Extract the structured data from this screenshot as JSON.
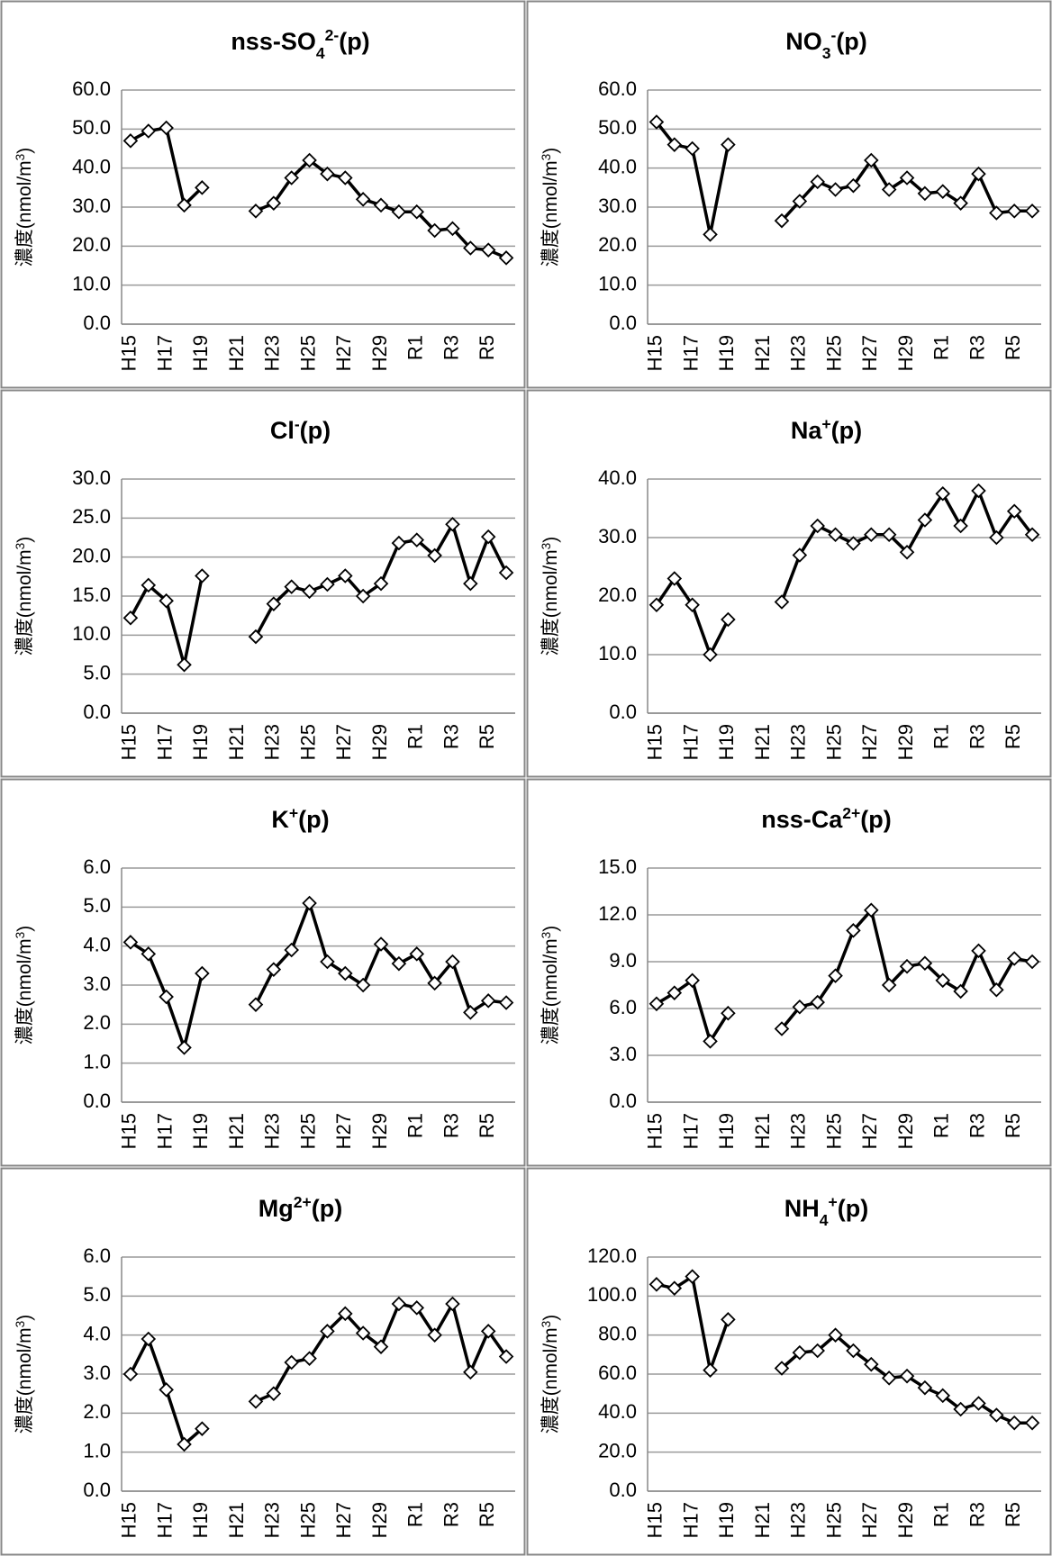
{
  "chart_data": [
    {
      "type": "line",
      "title": [
        {
          "text": "nss-SO"
        },
        {
          "text": "4",
          "shift": "sub"
        },
        {
          "text": "2-",
          "shift": "super"
        },
        {
          "text": "(p)"
        }
      ],
      "ylabel": [
        {
          "text": "濃度(nmol/m"
        },
        {
          "text": "3",
          "shift": "super"
        },
        {
          "text": ")"
        }
      ],
      "categories": [
        "H15",
        null,
        "H17",
        null,
        "H19",
        null,
        "H21",
        null,
        "H23",
        null,
        "H25",
        null,
        "H27",
        null,
        "H29",
        null,
        "R1",
        null,
        "R3",
        null,
        "R5",
        null
      ],
      "values": [
        47,
        49.5,
        50.3,
        30.5,
        35,
        null,
        null,
        29,
        31,
        37.5,
        42,
        38.5,
        37.5,
        32,
        30.5,
        28.8,
        28.8,
        24,
        24.5,
        19.5,
        19,
        17
      ],
      "color": "#000000",
      "marker": "diamond",
      "grid": true,
      "ylim": [
        0,
        60
      ],
      "yticks": [
        {
          "value": 0,
          "label": "0.0"
        },
        {
          "value": 10,
          "label": "10.0"
        },
        {
          "value": 20,
          "label": "20.0"
        },
        {
          "value": 30,
          "label": "30.0"
        },
        {
          "value": 40,
          "label": "40.0"
        },
        {
          "value": 50,
          "label": "50.0"
        },
        {
          "value": 60,
          "label": "60.0"
        }
      ]
    },
    {
      "type": "line",
      "title": [
        {
          "text": "NO"
        },
        {
          "text": "3",
          "shift": "sub"
        },
        {
          "text": "-",
          "shift": "super"
        },
        {
          "text": "(p)"
        }
      ],
      "ylabel": [
        {
          "text": "濃度(nmol/m"
        },
        {
          "text": "3",
          "shift": "super"
        },
        {
          "text": ")"
        }
      ],
      "categories": [
        "H15",
        null,
        "H17",
        null,
        "H19",
        null,
        "H21",
        null,
        "H23",
        null,
        "H25",
        null,
        "H27",
        null,
        "H29",
        null,
        "R1",
        null,
        "R3",
        null,
        "R5",
        null
      ],
      "values": [
        51.8,
        46,
        45,
        23,
        46,
        null,
        null,
        26.5,
        31.5,
        36.5,
        34.5,
        35.5,
        42,
        34.5,
        37.5,
        33.5,
        34,
        31,
        38.5,
        28.5,
        29,
        29
      ],
      "color": "#000000",
      "marker": "diamond",
      "grid": true,
      "ylim": [
        0,
        60
      ],
      "yticks": [
        {
          "value": 0,
          "label": "0.0"
        },
        {
          "value": 10,
          "label": "10.0"
        },
        {
          "value": 20,
          "label": "20.0"
        },
        {
          "value": 30,
          "label": "30.0"
        },
        {
          "value": 40,
          "label": "40.0"
        },
        {
          "value": 50,
          "label": "50.0"
        },
        {
          "value": 60,
          "label": "60.0"
        }
      ]
    },
    {
      "type": "line",
      "title": [
        {
          "text": "Cl"
        },
        {
          "text": "-",
          "shift": "super"
        },
        {
          "text": "(p)"
        }
      ],
      "ylabel": [
        {
          "text": "濃度(nmol/m"
        },
        {
          "text": "3",
          "shift": "super"
        },
        {
          "text": ")"
        }
      ],
      "categories": [
        "H15",
        null,
        "H17",
        null,
        "H19",
        null,
        "H21",
        null,
        "H23",
        null,
        "H25",
        null,
        "H27",
        null,
        "H29",
        null,
        "R1",
        null,
        "R3",
        null,
        "R5",
        null
      ],
      "values": [
        12.2,
        16.4,
        14.4,
        6.2,
        17.6,
        null,
        null,
        9.8,
        14,
        16.2,
        15.6,
        16.5,
        17.6,
        15,
        16.6,
        21.8,
        22.2,
        20.2,
        24.2,
        16.6,
        22.6,
        18
      ],
      "color": "#000000",
      "marker": "diamond",
      "grid": true,
      "ylim": [
        0,
        30
      ],
      "yticks": [
        {
          "value": 0,
          "label": "0.0"
        },
        {
          "value": 5,
          "label": "5.0"
        },
        {
          "value": 10,
          "label": "10.0"
        },
        {
          "value": 15,
          "label": "15.0"
        },
        {
          "value": 20,
          "label": "20.0"
        },
        {
          "value": 25,
          "label": "25.0"
        },
        {
          "value": 30,
          "label": "30.0"
        }
      ]
    },
    {
      "type": "line",
      "title": [
        {
          "text": "Na"
        },
        {
          "text": "+",
          "shift": "super"
        },
        {
          "text": "(p)"
        }
      ],
      "ylabel": [
        {
          "text": "濃度(nmol/m"
        },
        {
          "text": "3",
          "shift": "super"
        },
        {
          "text": ")"
        }
      ],
      "categories": [
        "H15",
        null,
        "H17",
        null,
        "H19",
        null,
        "H21",
        null,
        "H23",
        null,
        "H25",
        null,
        "H27",
        null,
        "H29",
        null,
        "R1",
        null,
        "R3",
        null,
        "R5",
        null
      ],
      "values": [
        18.5,
        23,
        18.5,
        10,
        16,
        null,
        null,
        19,
        27,
        32,
        30.5,
        29,
        30.5,
        30.5,
        27.5,
        33,
        37.5,
        32,
        38,
        30,
        34.5,
        30.5
      ],
      "color": "#000000",
      "marker": "diamond",
      "grid": true,
      "ylim": [
        0,
        40
      ],
      "yticks": [
        {
          "value": 0,
          "label": "0.0"
        },
        {
          "value": 10,
          "label": "10.0"
        },
        {
          "value": 20,
          "label": "20.0"
        },
        {
          "value": 30,
          "label": "30.0"
        },
        {
          "value": 40,
          "label": "40.0"
        }
      ]
    },
    {
      "type": "line",
      "title": [
        {
          "text": "K"
        },
        {
          "text": "+",
          "shift": "super"
        },
        {
          "text": "(p)"
        }
      ],
      "ylabel": [
        {
          "text": "濃度(nmol/m"
        },
        {
          "text": "3",
          "shift": "super"
        },
        {
          "text": ")"
        }
      ],
      "categories": [
        "H15",
        null,
        "H17",
        null,
        "H19",
        null,
        "H21",
        null,
        "H23",
        null,
        "H25",
        null,
        "H27",
        null,
        "H29",
        null,
        "R1",
        null,
        "R3",
        null,
        "R5",
        null
      ],
      "values": [
        4.1,
        3.8,
        2.7,
        1.4,
        3.3,
        null,
        null,
        2.5,
        3.4,
        3.9,
        5.1,
        3.6,
        3.3,
        3.0,
        4.05,
        3.55,
        3.8,
        3.05,
        3.6,
        2.3,
        2.6,
        2.55
      ],
      "color": "#000000",
      "marker": "diamond",
      "grid": true,
      "ylim": [
        0,
        6
      ],
      "yticks": [
        {
          "value": 0,
          "label": "0.0"
        },
        {
          "value": 1,
          "label": "1.0"
        },
        {
          "value": 2,
          "label": "2.0"
        },
        {
          "value": 3,
          "label": "3.0"
        },
        {
          "value": 4,
          "label": "4.0"
        },
        {
          "value": 5,
          "label": "5.0"
        },
        {
          "value": 6,
          "label": "6.0"
        }
      ]
    },
    {
      "type": "line",
      "title": [
        {
          "text": "nss-Ca"
        },
        {
          "text": "2+",
          "shift": "super"
        },
        {
          "text": "(p)"
        }
      ],
      "ylabel": [
        {
          "text": "濃度(nmol/m"
        },
        {
          "text": "3",
          "shift": "super"
        },
        {
          "text": ")"
        }
      ],
      "categories": [
        "H15",
        null,
        "H17",
        null,
        "H19",
        null,
        "H21",
        null,
        "H23",
        null,
        "H25",
        null,
        "H27",
        null,
        "H29",
        null,
        "R1",
        null,
        "R3",
        null,
        "R5",
        null
      ],
      "values": [
        6.3,
        7.0,
        7.8,
        3.9,
        5.7,
        null,
        null,
        4.7,
        6.1,
        6.4,
        8.1,
        11.0,
        12.3,
        7.5,
        8.7,
        8.9,
        7.8,
        7.1,
        9.7,
        7.2,
        9.2,
        9.0
      ],
      "color": "#000000",
      "marker": "diamond",
      "grid": true,
      "ylim": [
        0,
        15
      ],
      "yticks": [
        {
          "value": 0,
          "label": "0.0"
        },
        {
          "value": 3,
          "label": "3.0"
        },
        {
          "value": 6,
          "label": "6.0"
        },
        {
          "value": 9,
          "label": "9.0"
        },
        {
          "value": 12,
          "label": "12.0"
        },
        {
          "value": 15,
          "label": "15.0"
        }
      ]
    },
    {
      "type": "line",
      "title": [
        {
          "text": "Mg"
        },
        {
          "text": "2+",
          "shift": "super"
        },
        {
          "text": "(p)"
        }
      ],
      "ylabel": [
        {
          "text": "濃度(nmol/m"
        },
        {
          "text": "3",
          "shift": "super"
        },
        {
          "text": ")"
        }
      ],
      "categories": [
        "H15",
        null,
        "H17",
        null,
        "H19",
        null,
        "H21",
        null,
        "H23",
        null,
        "H25",
        null,
        "H27",
        null,
        "H29",
        null,
        "R1",
        null,
        "R3",
        null,
        "R5",
        null
      ],
      "values": [
        3.0,
        3.9,
        2.6,
        1.2,
        1.6,
        null,
        null,
        2.3,
        2.5,
        3.3,
        3.4,
        4.1,
        4.55,
        4.05,
        3.7,
        4.8,
        4.7,
        4.0,
        4.8,
        3.05,
        4.1,
        3.45
      ],
      "color": "#000000",
      "marker": "diamond",
      "grid": true,
      "ylim": [
        0,
        6
      ],
      "yticks": [
        {
          "value": 0,
          "label": "0.0"
        },
        {
          "value": 1,
          "label": "1.0"
        },
        {
          "value": 2,
          "label": "2.0"
        },
        {
          "value": 3,
          "label": "3.0"
        },
        {
          "value": 4,
          "label": "4.0"
        },
        {
          "value": 5,
          "label": "5.0"
        },
        {
          "value": 6,
          "label": "6.0"
        }
      ]
    },
    {
      "type": "line",
      "title": [
        {
          "text": "NH"
        },
        {
          "text": "4",
          "shift": "sub"
        },
        {
          "text": "+",
          "shift": "super"
        },
        {
          "text": "(p)"
        }
      ],
      "ylabel": [
        {
          "text": "濃度(nmol/m"
        },
        {
          "text": "3",
          "shift": "super"
        },
        {
          "text": ")"
        }
      ],
      "categories": [
        "H15",
        null,
        "H17",
        null,
        "H19",
        null,
        "H21",
        null,
        "H23",
        null,
        "H25",
        null,
        "H27",
        null,
        "H29",
        null,
        "R1",
        null,
        "R3",
        null,
        "R5",
        null
      ],
      "values": [
        106,
        104,
        110,
        62,
        88,
        null,
        null,
        63,
        71,
        72,
        80,
        72,
        65,
        58,
        59,
        53,
        49,
        42,
        45,
        39,
        35,
        35
      ],
      "color": "#000000",
      "marker": "diamond",
      "grid": true,
      "ylim": [
        0,
        120
      ],
      "yticks": [
        {
          "value": 0,
          "label": "0.0"
        },
        {
          "value": 20,
          "label": "20.0"
        },
        {
          "value": 40,
          "label": "40.0"
        },
        {
          "value": 60,
          "label": "60.0"
        },
        {
          "value": 80,
          "label": "80.0"
        },
        {
          "value": 100,
          "label": "100.0"
        },
        {
          "value": 120,
          "label": "120.0"
        }
      ]
    }
  ]
}
